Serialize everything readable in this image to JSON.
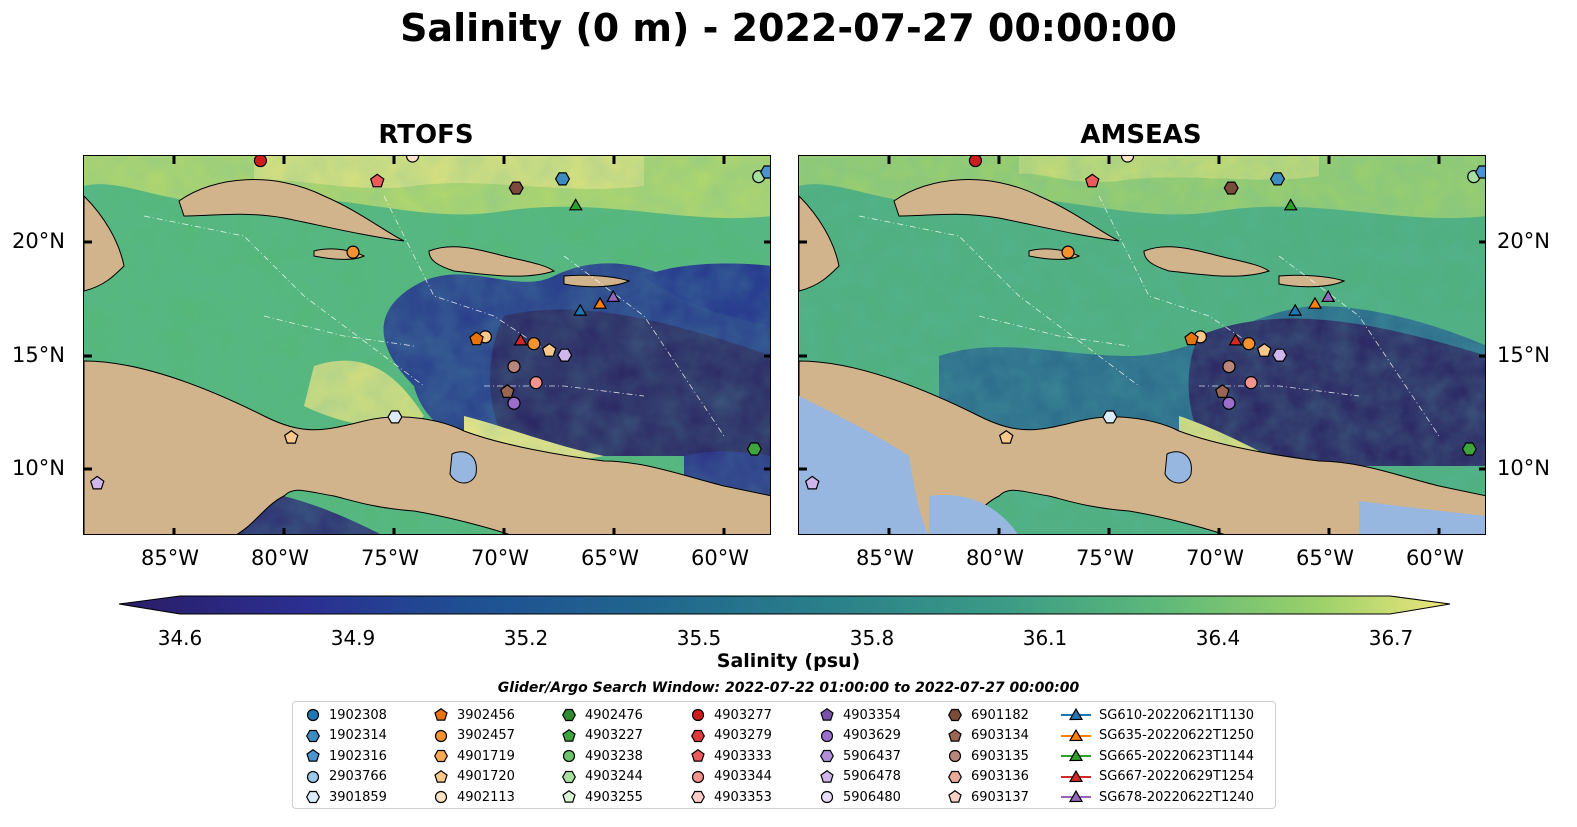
{
  "title": "Salinity (0 m) - 2022-07-27 00:00:00",
  "panels": [
    {
      "title": "RTOFS"
    },
    {
      "title": "AMSEAS"
    }
  ],
  "lat_ticks": [
    "20°N",
    "15°N",
    "10°N"
  ],
  "lon_ticks": [
    "85°W",
    "80°W",
    "75°W",
    "70°W",
    "65°W",
    "60°W"
  ],
  "colorbar": {
    "label": "Salinity (psu)",
    "ticks": [
      "34.6",
      "34.9",
      "35.2",
      "35.5",
      "35.8",
      "36.1",
      "36.4",
      "36.7"
    ],
    "colormap": "haline",
    "range": [
      34.6,
      36.7
    ]
  },
  "search_window": "Glider/Argo Search Window: 2022-07-22 01:00:00 to 2022-07-27 00:00:00",
  "legend": {
    "columns": [
      [
        {
          "label": "1902308",
          "marker": "circle",
          "color": "#1f77b4"
        },
        {
          "label": "1902314",
          "marker": "hexagon",
          "color": "#3d8bc0"
        },
        {
          "label": "1902316",
          "marker": "pentagon",
          "color": "#4b93cc"
        },
        {
          "label": "2903766",
          "marker": "circle",
          "color": "#9ec9ea"
        },
        {
          "label": "3901859",
          "marker": "hexagon",
          "color": "#dcecf8"
        }
      ],
      [
        {
          "label": "3902456",
          "marker": "pentagon",
          "color": "#e6730d"
        },
        {
          "label": "3902457",
          "marker": "circle",
          "color": "#f5922e"
        },
        {
          "label": "4901719",
          "marker": "hexagon",
          "color": "#f8a850"
        },
        {
          "label": "4901720",
          "marker": "pentagon",
          "color": "#fbc88c"
        },
        {
          "label": "4902113",
          "marker": "circle",
          "color": "#fde3c5"
        }
      ],
      [
        {
          "label": "4902476",
          "marker": "hexagon",
          "color": "#2e8b2e"
        },
        {
          "label": "4903227",
          "marker": "pentagon",
          "color": "#3ea43e"
        },
        {
          "label": "4903238",
          "marker": "circle",
          "color": "#6cc46c"
        },
        {
          "label": "4903244",
          "marker": "hexagon",
          "color": "#a6dfa0"
        },
        {
          "label": "4903255",
          "marker": "pentagon",
          "color": "#d8f2d2"
        }
      ],
      [
        {
          "label": "4903277",
          "marker": "circle",
          "color": "#cc1c1c"
        },
        {
          "label": "4903279",
          "marker": "hexagon",
          "color": "#de3a3a"
        },
        {
          "label": "4903333",
          "marker": "pentagon",
          "color": "#ec5a5a"
        },
        {
          "label": "4903344",
          "marker": "circle",
          "color": "#f4928e"
        },
        {
          "label": "4903353",
          "marker": "hexagon",
          "color": "#fbcdc8"
        }
      ],
      [
        {
          "label": "4903354",
          "marker": "pentagon",
          "color": "#7b52ab"
        },
        {
          "label": "4903629",
          "marker": "circle",
          "color": "#9a6fc9"
        },
        {
          "label": "5906437",
          "marker": "hexagon",
          "color": "#b08ed8"
        },
        {
          "label": "5906478",
          "marker": "pentagon",
          "color": "#cfb6eb"
        },
        {
          "label": "5906480",
          "marker": "circle",
          "color": "#e8dcf8"
        }
      ],
      [
        {
          "label": "6901182",
          "marker": "hexagon",
          "color": "#7a4a3a"
        },
        {
          "label": "6903134",
          "marker": "pentagon",
          "color": "#9a6553"
        },
        {
          "label": "6903135",
          "marker": "circle",
          "color": "#b8867a"
        },
        {
          "label": "6903136",
          "marker": "hexagon",
          "color": "#eaaa9a"
        },
        {
          "label": "6903137",
          "marker": "pentagon",
          "color": "#f8cfc4"
        }
      ],
      [
        {
          "label": "SG610-20220621T1130",
          "marker": "triangle-line",
          "color": "#1f77b4"
        },
        {
          "label": "SG635-20220622T1250",
          "marker": "triangle-line",
          "color": "#ff7f0e"
        },
        {
          "label": "SG665-20220623T1144",
          "marker": "triangle-line",
          "color": "#2ca02c"
        },
        {
          "label": "SG667-20220629T1254",
          "marker": "triangle-line",
          "color": "#d62728"
        },
        {
          "label": "SG678-20220622T1240",
          "marker": "triangle-line",
          "color": "#9467bd"
        }
      ]
    ]
  },
  "land_color": "#d2b48c",
  "map_points": [
    {
      "lon": -81.1,
      "lat": 23.6,
      "marker": "circle",
      "color": "#cc1c1c"
    },
    {
      "lon": -75.8,
      "lat": 22.7,
      "marker": "pentagon",
      "color": "#ec5a5a"
    },
    {
      "lon": -69.5,
      "lat": 22.4,
      "marker": "hexagon",
      "color": "#7a4a3a"
    },
    {
      "lon": -67.4,
      "lat": 22.8,
      "marker": "hexagon",
      "color": "#3d8bc0"
    },
    {
      "lon": -76.9,
      "lat": 19.6,
      "marker": "circle",
      "color": "#f5922e"
    },
    {
      "lon": -70.9,
      "lat": 15.9,
      "marker": "circle",
      "color": "#fbc88c"
    },
    {
      "lon": -71.3,
      "lat": 15.8,
      "marker": "pentagon",
      "color": "#e6730d"
    },
    {
      "lon": -68.7,
      "lat": 15.6,
      "marker": "circle",
      "color": "#f5922e"
    },
    {
      "lon": -68.0,
      "lat": 15.3,
      "marker": "pentagon",
      "color": "#fbc88c"
    },
    {
      "lon": -67.3,
      "lat": 15.1,
      "marker": "hexagon",
      "color": "#cfb6eb"
    },
    {
      "lon": -69.6,
      "lat": 14.6,
      "marker": "circle",
      "color": "#b8867a"
    },
    {
      "lon": -68.6,
      "lat": 13.9,
      "marker": "circle",
      "color": "#f4928e"
    },
    {
      "lon": -69.9,
      "lat": 13.5,
      "marker": "pentagon",
      "color": "#9a6553"
    },
    {
      "lon": -69.6,
      "lat": 13.0,
      "marker": "circle",
      "color": "#9a6fc9"
    },
    {
      "lon": -75.0,
      "lat": 12.4,
      "marker": "hexagon",
      "color": "#dcecf8"
    },
    {
      "lon": -79.7,
      "lat": 11.5,
      "marker": "pentagon",
      "color": "#fbc88c"
    },
    {
      "lon": -58.7,
      "lat": 11.0,
      "marker": "hexagon",
      "color": "#3ea43e"
    },
    {
      "lon": -88.5,
      "lat": 9.5,
      "marker": "pentagon",
      "color": "#cfb6eb"
    },
    {
      "lon": -58.5,
      "lat": 22.9,
      "marker": "circle",
      "color": "#a6dfa0"
    },
    {
      "lon": -58.1,
      "lat": 23.1,
      "marker": "hexagon",
      "color": "#4b93cc"
    },
    {
      "lon": -74.2,
      "lat": 23.8,
      "marker": "circle",
      "color": "#fde3c5"
    },
    {
      "lon": -66.8,
      "lat": 21.6,
      "marker": "triangle",
      "color": "#2ca02c"
    },
    {
      "lon": -66.6,
      "lat": 17.0,
      "marker": "triangle",
      "color": "#1f77b4"
    },
    {
      "lon": -65.7,
      "lat": 17.3,
      "marker": "triangle",
      "color": "#ff7f0e"
    },
    {
      "lon": -65.1,
      "lat": 17.6,
      "marker": "triangle",
      "color": "#9467bd"
    },
    {
      "lon": -69.3,
      "lat": 15.7,
      "marker": "triangle",
      "color": "#d62728"
    }
  ]
}
